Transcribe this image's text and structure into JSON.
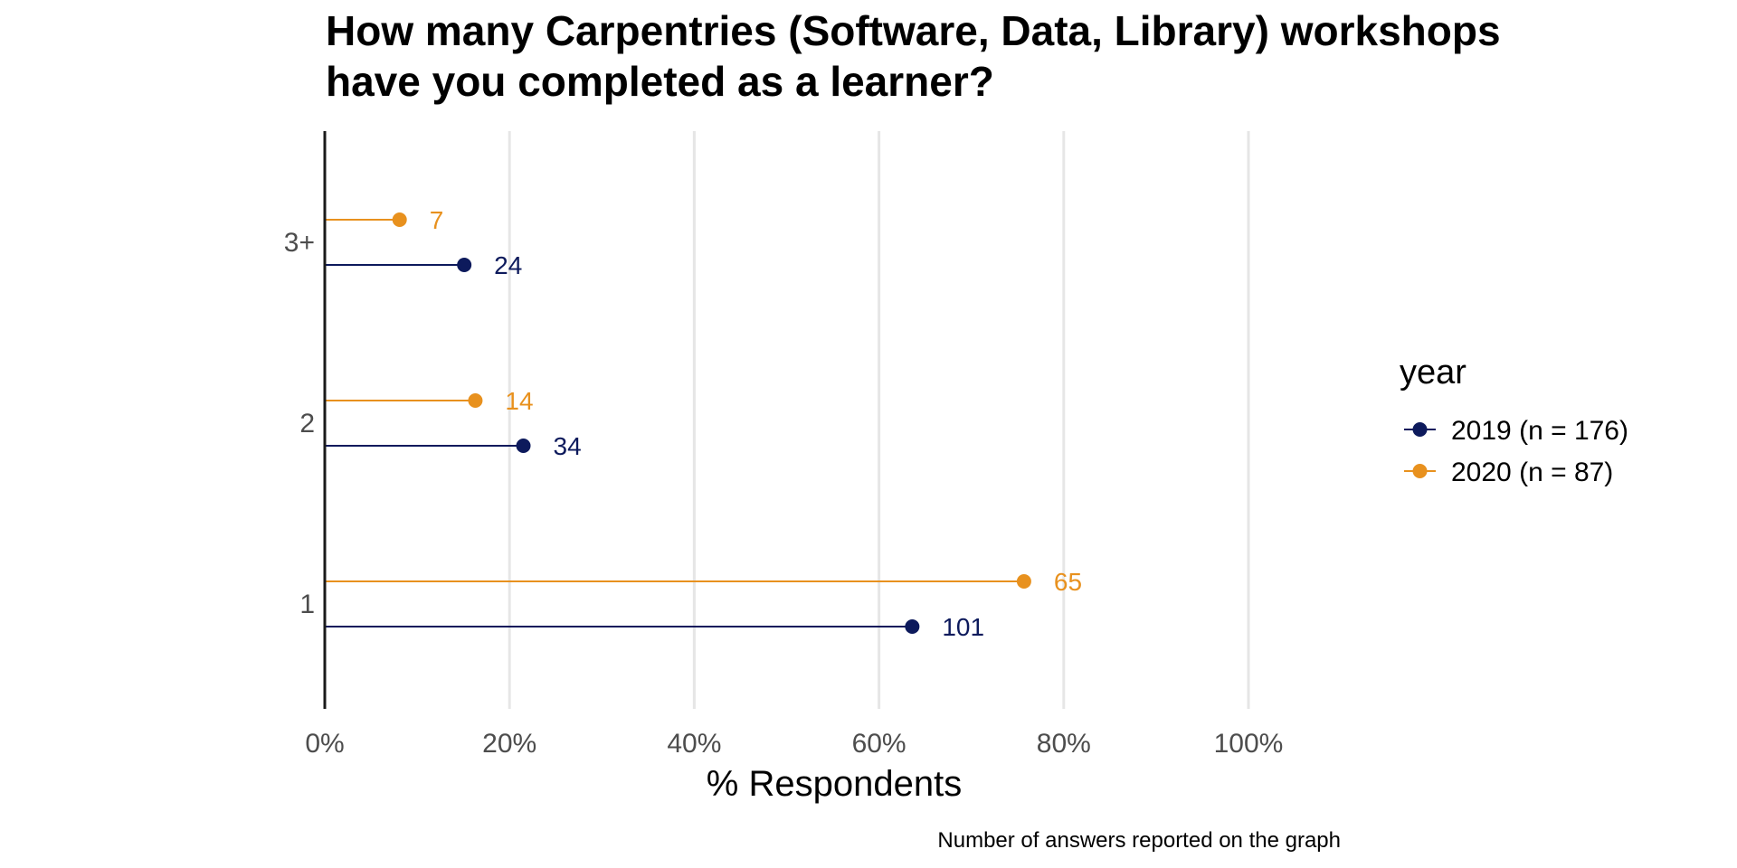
{
  "chart_data": {
    "type": "lollipop",
    "title_lines": [
      "How many Carpentries (Software, Data, Library) workshops",
      "have you completed as a learner?"
    ],
    "xlabel": "% Respondents",
    "ylabel": "",
    "caption": "Number of answers reported on the graph",
    "categories": [
      "1",
      "2",
      "3+"
    ],
    "x_ticks": [
      "0%",
      "20%",
      "40%",
      "60%",
      "80%",
      "100%"
    ],
    "xlim": [
      0,
      100
    ],
    "grid": true,
    "legend_title": "year",
    "legend_position": "right",
    "series": [
      {
        "name": "2019 (n = 176)",
        "color": "#0d1a5c",
        "percents": [
          63.6,
          21.5,
          15.1
        ],
        "counts": [
          "101",
          "34",
          "24"
        ]
      },
      {
        "name": "2020 (n = 87)",
        "color": "#e8911e",
        "percents": [
          75.7,
          16.3,
          8.1
        ],
        "counts": [
          "65",
          "14",
          "7"
        ]
      }
    ]
  }
}
